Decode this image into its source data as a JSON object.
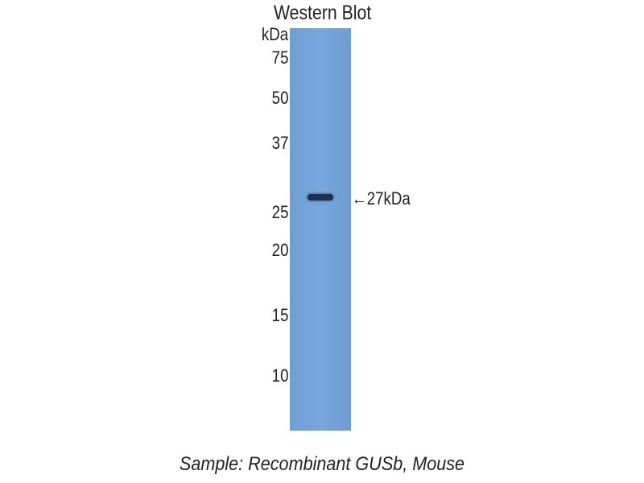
{
  "title": "Western Blot",
  "unit_label": "kDa",
  "markers": [
    "75",
    "50",
    "37",
    "25",
    "20",
    "15",
    "10"
  ],
  "band_label": "←27kDa",
  "caption": "Sample: Recombinant GUSb, Mouse",
  "colors": {
    "lane": "#76a4da",
    "band": "#1d2e4f"
  }
}
